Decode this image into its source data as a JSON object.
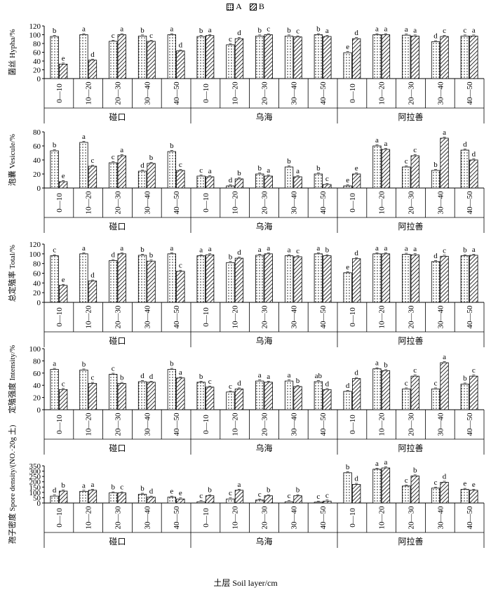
{
  "legend": {
    "a_label": "A",
    "b_label": "B"
  },
  "x_axis_title": "土层 Soil layer/cm",
  "groups": [
    "碰口",
    "乌海",
    "阿拉善"
  ],
  "layers": [
    "0—10",
    "10—20",
    "20—30",
    "30—40",
    "40—50"
  ],
  "chart_data": [
    {
      "type": "bar",
      "ylabel": "菌丝 Hypha/%",
      "ylim": [
        0,
        120
      ],
      "yticks": [
        0,
        20,
        40,
        60,
        80,
        100,
        120
      ],
      "categories": [
        "碰口 0—10",
        "碰口 10—20",
        "碰口 20—30",
        "碰口 30—40",
        "碰口 40—50",
        "乌海 0—10",
        "乌海 10—20",
        "乌海 20—30",
        "乌海 30—40",
        "乌海 40—50",
        "阿拉善 0—10",
        "阿拉善 10—20",
        "阿拉善 20—30",
        "阿拉善 30—40",
        "阿拉善 40—50"
      ],
      "series": [
        {
          "name": "A",
          "values": [
            96,
            100,
            85,
            97,
            100,
            96,
            77,
            97,
            97,
            100,
            59,
            100,
            99,
            84,
            97
          ],
          "letters": [
            "b",
            "a",
            "c",
            "b",
            "a",
            "b",
            "c",
            "b",
            "b",
            "b",
            "e",
            "a",
            "a",
            "d",
            "c"
          ]
        },
        {
          "name": "B",
          "values": [
            33,
            42,
            100,
            85,
            63,
            98,
            91,
            100,
            95,
            96,
            91,
            100,
            97,
            96,
            97
          ],
          "letters": [
            "e",
            "d",
            "a",
            "c",
            "d",
            "a",
            "d",
            "c",
            "c",
            "a",
            "d",
            "a",
            "a",
            "c",
            "a"
          ]
        }
      ]
    },
    {
      "type": "bar",
      "ylabel": "泡囊 Vesicule/%",
      "ylim": [
        0,
        80
      ],
      "yticks": [
        0,
        20,
        40,
        60,
        80
      ],
      "categories": [
        "碰口 0—10",
        "碰口 10—20",
        "碰口 20—30",
        "碰口 30—40",
        "碰口 40—50",
        "乌海 0—10",
        "乌海 10—20",
        "乌海 20—30",
        "乌海 30—40",
        "乌海 40—50",
        "阿拉善 0—10",
        "阿拉善 10—20",
        "阿拉善 20—30",
        "阿拉善 30—40",
        "阿拉善 40—50"
      ],
      "series": [
        {
          "name": "A",
          "values": [
            53,
            65,
            36,
            24,
            52,
            17,
            3,
            20,
            30,
            20,
            3,
            60,
            30,
            25,
            54
          ],
          "letters": [
            "b",
            "a",
            "c",
            "d",
            "b",
            "c",
            "d",
            "b",
            "b",
            "b",
            "e",
            "a",
            "c",
            "b",
            "d"
          ]
        },
        {
          "name": "B",
          "values": [
            9,
            31,
            46,
            35,
            25,
            16,
            13,
            17,
            16,
            5,
            20,
            55,
            46,
            71,
            40
          ],
          "letters": [
            "e",
            "c",
            "a",
            "b",
            "c",
            "a",
            "b",
            "a",
            "a",
            "c",
            "e",
            "a",
            "c",
            "a",
            "d"
          ]
        }
      ]
    },
    {
      "type": "bar",
      "ylabel": "总定殖率 Total/%",
      "ylim": [
        0,
        120
      ],
      "yticks": [
        0,
        20,
        40,
        60,
        80,
        100,
        120
      ],
      "categories": [
        "碰口 0—10",
        "碰口 10—20",
        "碰口 20—30",
        "碰口 30—40",
        "碰口 40—50",
        "乌海 0—10",
        "乌海 10—20",
        "乌海 20—30",
        "乌海 30—40",
        "乌海 40—50",
        "阿拉善 0—10",
        "阿拉善 10—20",
        "阿拉善 20—30",
        "阿拉善 30—40",
        "阿拉善 40—50"
      ],
      "series": [
        {
          "name": "A",
          "values": [
            96,
            100,
            86,
            97,
            100,
            96,
            82,
            97,
            96,
            100,
            61,
            100,
            99,
            84,
            96
          ],
          "letters": [
            "c",
            "a",
            "d",
            "b",
            "a",
            "a",
            "b",
            "a",
            "a",
            "a",
            "e",
            "a",
            "a",
            "d",
            "b"
          ]
        },
        {
          "name": "B",
          "values": [
            35,
            44,
            100,
            85,
            64,
            98,
            91,
            100,
            94,
            96,
            90,
            100,
            98,
            95,
            97
          ],
          "letters": [
            "e",
            "d",
            "a",
            "b",
            "c",
            "a",
            "d",
            "a",
            "c",
            "b",
            "d",
            "a",
            "a",
            "c",
            "a"
          ]
        }
      ]
    },
    {
      "type": "bar",
      "ylabel": "定殖强度 Intensity/%",
      "ylim": [
        0,
        100
      ],
      "yticks": [
        0,
        20,
        40,
        60,
        80,
        100
      ],
      "categories": [
        "碰口 0—10",
        "碰口 10—20",
        "碰口 20—30",
        "碰口 30—40",
        "碰口 40—50",
        "乌海 0—10",
        "乌海 10—20",
        "乌海 20—30",
        "乌海 30—40",
        "乌海 40—50",
        "阿拉善 0—10",
        "阿拉善 10—20",
        "阿拉善 20—30",
        "阿拉善 30—40",
        "阿拉善 40—50"
      ],
      "series": [
        {
          "name": "A",
          "values": [
            66,
            65,
            58,
            46,
            66,
            45,
            29,
            47,
            47,
            46,
            30,
            67,
            34,
            34,
            42
          ],
          "letters": [
            "a",
            "b",
            "c",
            "d",
            "b",
            "b",
            "c",
            "a",
            "a",
            "ab",
            "d",
            "a",
            "c",
            "c",
            "b"
          ]
        },
        {
          "name": "B",
          "values": [
            33,
            43,
            43,
            45,
            52,
            37,
            34,
            45,
            38,
            33,
            51,
            64,
            55,
            77,
            55
          ],
          "letters": [
            "c",
            "c",
            "b",
            "d",
            "a",
            "c",
            "d",
            "a",
            "b",
            "d",
            "d",
            "b",
            "c",
            "a",
            "c"
          ]
        }
      ]
    },
    {
      "type": "bar",
      "ylabel": "孢子密度 Spore density/(NO.·20g 土)",
      "ylim": [
        0,
        350
      ],
      "yticks": [
        0,
        50,
        100,
        150,
        200,
        250,
        300,
        350
      ],
      "categories": [
        "碰口 0—10",
        "碰口 10—20",
        "碰口 20—30",
        "碰口 30—40",
        "碰口 40—50",
        "乌海 0—10",
        "乌海 10—20",
        "乌海 20—30",
        "乌海 30—40",
        "乌海 40—50",
        "阿拉善 0—10",
        "阿拉善 10—20",
        "阿拉善 20—30",
        "阿拉善 30—40",
        "阿拉善 40—50"
      ],
      "series": [
        {
          "name": "A",
          "values": [
            65,
            110,
            95,
            82,
            55,
            12,
            38,
            28,
            12,
            8,
            285,
            318,
            160,
            140,
            128
          ],
          "letters": [
            "d",
            "a",
            "b",
            "b",
            "e",
            "c",
            "c",
            "c",
            "c",
            "c",
            "b",
            "a",
            "c",
            "c",
            "e"
          ]
        },
        {
          "name": "B",
          "values": [
            112,
            120,
            95,
            55,
            38,
            68,
            120,
            68,
            68,
            18,
            175,
            330,
            255,
            195,
            120
          ],
          "letters": [
            "b",
            "a",
            "c",
            "d",
            "e",
            "b",
            "a",
            "b",
            "b",
            "c",
            "d",
            "a",
            "b",
            "d",
            "e"
          ]
        }
      ]
    }
  ]
}
